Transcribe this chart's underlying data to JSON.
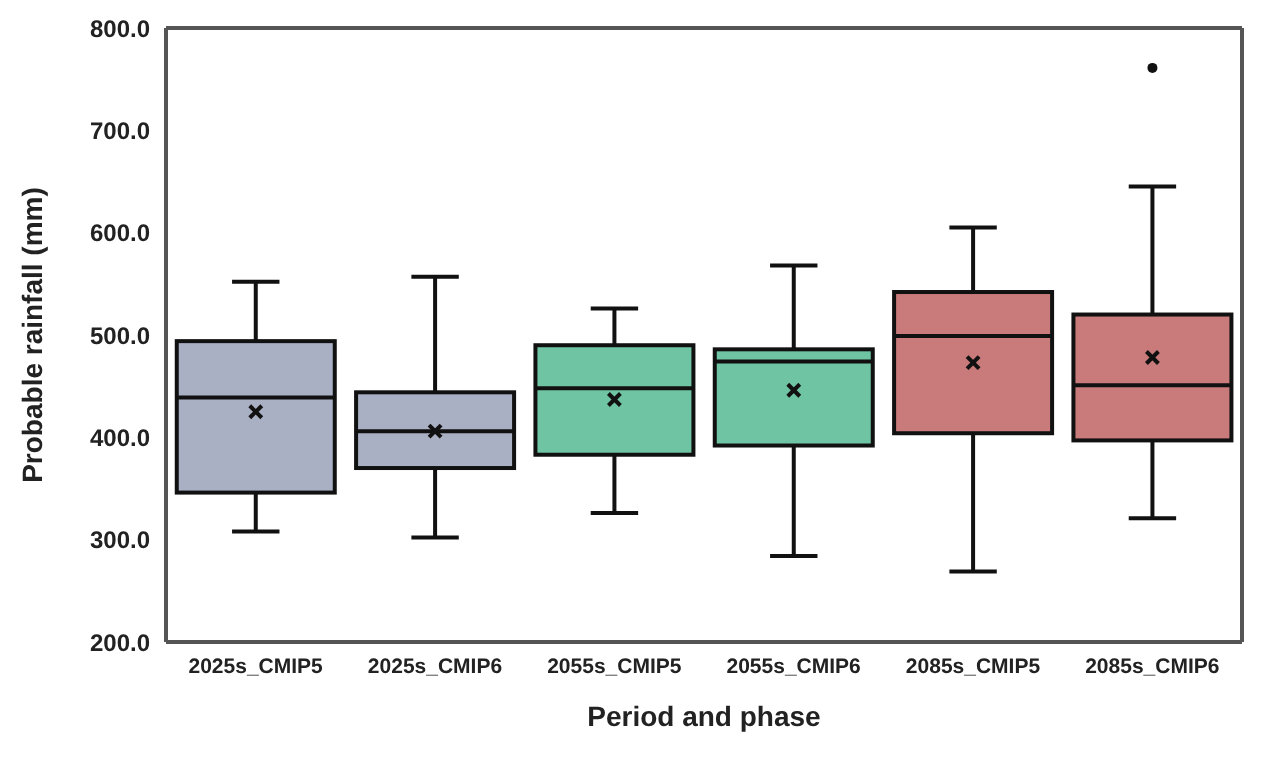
{
  "chart_data": {
    "type": "box",
    "xlabel": "Period and phase",
    "ylabel": "Probable rainfall (mm)",
    "categories": [
      "2025s_CMIP5",
      "2025s_CMIP6",
      "2055s_CMIP5",
      "2055s_CMIP6",
      "2085s_CMIP5",
      "2085s_CMIP6"
    ],
    "colors": [
      "#a9b0c4",
      "#a9b0c4",
      "#6fc5a3",
      "#6fc5a3",
      "#c97a7a",
      "#c97a7a"
    ],
    "boxes": [
      {
        "low": 308,
        "q1": 346,
        "median": 439,
        "q3": 494,
        "high": 552,
        "mean": 425
      },
      {
        "low": 302,
        "q1": 370,
        "median": 406,
        "q3": 444,
        "high": 557,
        "mean": 406
      },
      {
        "low": 326,
        "q1": 383,
        "median": 448,
        "q3": 490,
        "high": 526,
        "mean": 437
      },
      {
        "low": 284,
        "q1": 392,
        "median": 474,
        "q3": 486,
        "high": 568,
        "mean": 446
      },
      {
        "low": 269,
        "q1": 404,
        "median": 499,
        "q3": 542,
        "high": 605,
        "mean": 473
      },
      {
        "low": 321,
        "q1": 397,
        "median": 451,
        "q3": 520,
        "high": 645,
        "mean": 478,
        "outliers": [
          761
        ]
      }
    ],
    "ylim": [
      200,
      800
    ],
    "yticks": [
      {
        "value": 200,
        "label": "200.0"
      },
      {
        "value": 300,
        "label": "300.0"
      },
      {
        "value": 400,
        "label": "400.0"
      },
      {
        "value": 500,
        "label": "500.0"
      },
      {
        "value": 600,
        "label": "600.0"
      },
      {
        "value": 700,
        "label": "700.0"
      },
      {
        "value": 800,
        "label": "800.0"
      }
    ],
    "grid": false,
    "legend": false
  }
}
